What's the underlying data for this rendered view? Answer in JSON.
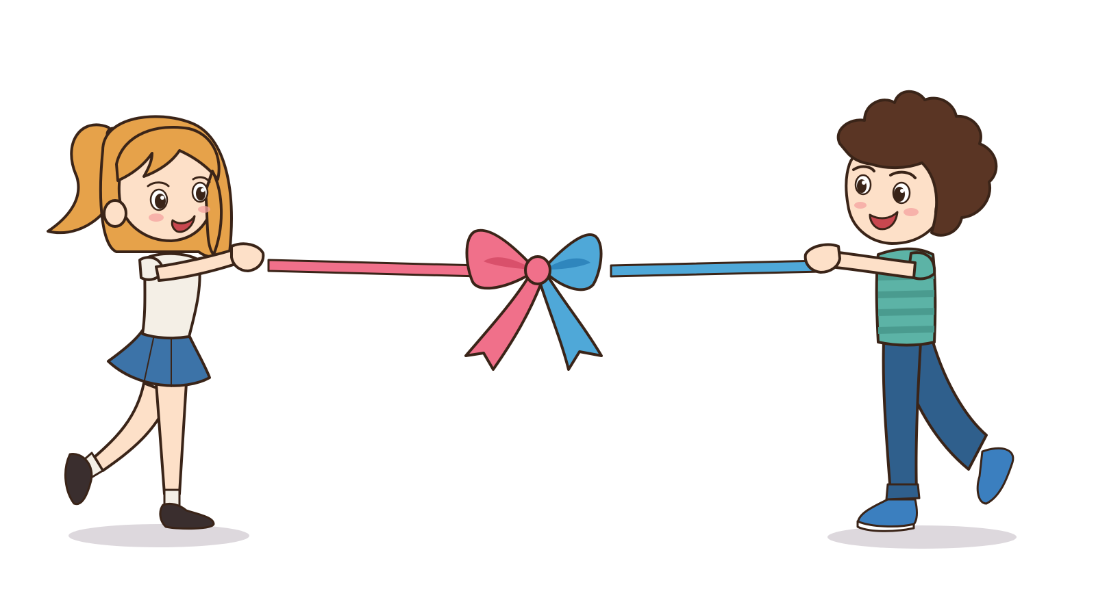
{
  "colors": {
    "background": "#ffffff",
    "outline": "#3a2418",
    "skin": "#fde0c8",
    "cheek": "#f4a3a0",
    "girl_hair": "#e6a24a",
    "girl_hair_shade": "#c9822e",
    "girl_shirt": "#f4efe6",
    "girl_skirt": "#3c73a8",
    "girl_shoes": "#3a2e2e",
    "girl_hairtie": "#3c6aa0",
    "boy_hair": "#5a3524",
    "boy_shirt": "#5cb3a6",
    "boy_shirt_stripe": "#4a9b8f",
    "boy_jeans": "#2f5f8c",
    "boy_shoes": "#3b7fbf",
    "ribbon_pink": "#f0708a",
    "ribbon_pink_dark": "#d9506b",
    "ribbon_blue": "#4fa8d8",
    "ribbon_blue_dark": "#2f86bd",
    "ground_shadow": "#ddd8dd"
  }
}
